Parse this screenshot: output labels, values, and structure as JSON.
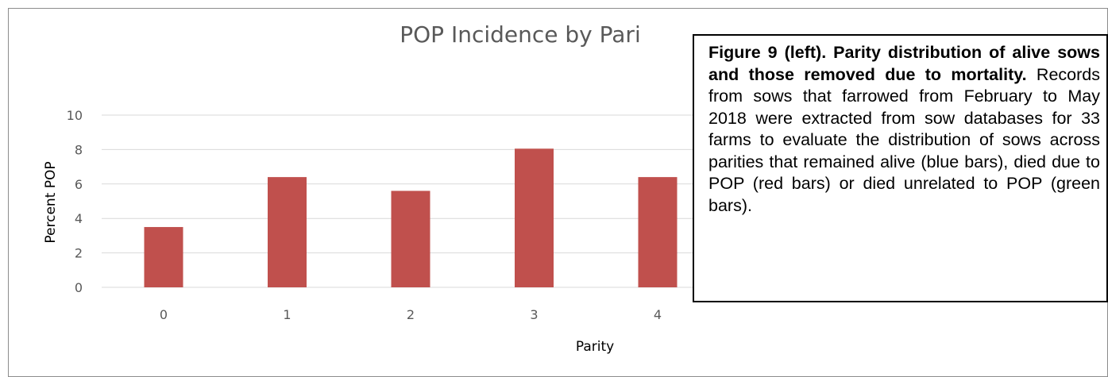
{
  "chart_data": {
    "type": "bar",
    "title": "POP Incidence by Pari",
    "xlabel": "Parity",
    "ylabel": "Percent POP",
    "categories": [
      "0",
      "1",
      "2",
      "3",
      "4"
    ],
    "values": [
      3.5,
      6.4,
      5.6,
      8.05,
      6.4
    ],
    "ylim": [
      0,
      10
    ],
    "yticks": [
      "0",
      "2",
      "4",
      "6",
      "8",
      "10"
    ],
    "grid": true,
    "bar_color": "#c0504d",
    "grid_color": "#d9d9d9"
  },
  "caption": {
    "bold": "Figure 9 (left). Parity distribution of alive sows and those removed due to mortality.",
    "text": " Records from sows that farrowed from February to May 2018 were extracted from sow databases for 33 farms to evaluate the distribution of sows across parities that remained alive (blue bars), died due to POP (red bars) or died unrelated to POP (green bars)."
  }
}
